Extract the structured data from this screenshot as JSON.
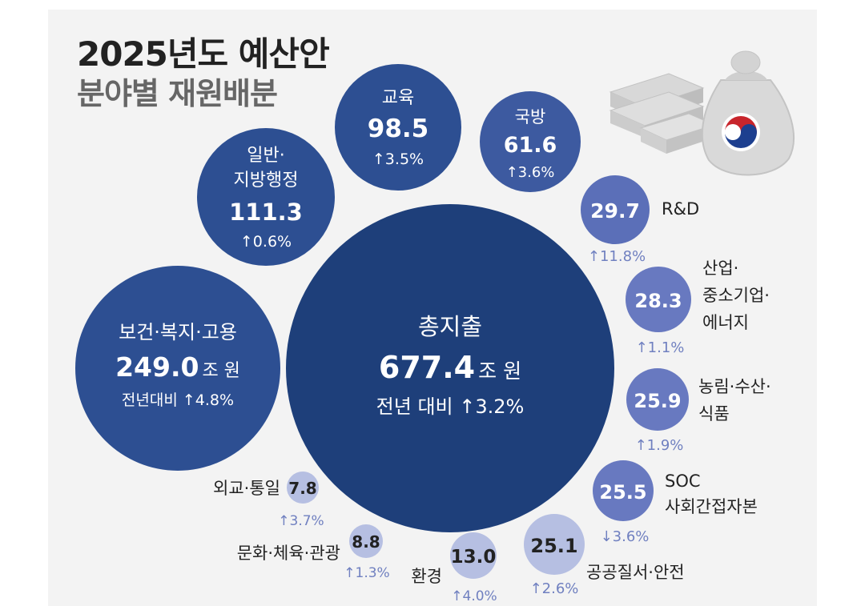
{
  "header": {
    "title": "2025년도 예산안",
    "subtitle": "분야별 재원배분"
  },
  "colors": {
    "total": "#1e3f7a",
    "large": "#2d4f92",
    "medium": "#3d5aa0",
    "light": "#7b8ccc",
    "pale": "#b6bfe2",
    "text_dark": "#222222",
    "change": "#7080c0"
  },
  "chart_data": {
    "type": "bubble",
    "unit": "조 원",
    "total": {
      "label": "총지출",
      "value": "677.4",
      "unit": "조 원",
      "change_text": "전년 대비 ↑3.2%"
    },
    "categories": [
      {
        "label": "보건·복지·고용",
        "value": "249.0",
        "unit": "조 원",
        "change": "전년대비 ↑4.8%"
      },
      {
        "label_lines": [
          "일반·",
          "지방행정"
        ],
        "value": "111.3",
        "change": "↑0.6%"
      },
      {
        "label": "교육",
        "value": "98.5",
        "change": "↑3.5%"
      },
      {
        "label": "국방",
        "value": "61.6",
        "change": "↑3.6%"
      },
      {
        "label": "R&D",
        "value": "29.7",
        "change": "↑11.8%"
      },
      {
        "label_lines": [
          "산업·",
          "중소기업·",
          "에너지"
        ],
        "value": "28.3",
        "change": "↑1.1%"
      },
      {
        "label_lines": [
          "농림·수산·",
          "식품"
        ],
        "value": "25.9",
        "change": "↑1.9%"
      },
      {
        "label_lines": [
          "SOC",
          "사회간접자본"
        ],
        "value": "25.5",
        "change": "↓3.6%"
      },
      {
        "label": "공공질서·안전",
        "value": "25.1",
        "change": "↑2.6%"
      },
      {
        "label": "환경",
        "value": "13.0",
        "change": "↑4.0%"
      },
      {
        "label": "문화·체육·관광",
        "value": "8.8",
        "change": "↑1.3%"
      },
      {
        "label": "외교·통일",
        "value": "7.8",
        "change": "↑3.7%"
      }
    ]
  }
}
